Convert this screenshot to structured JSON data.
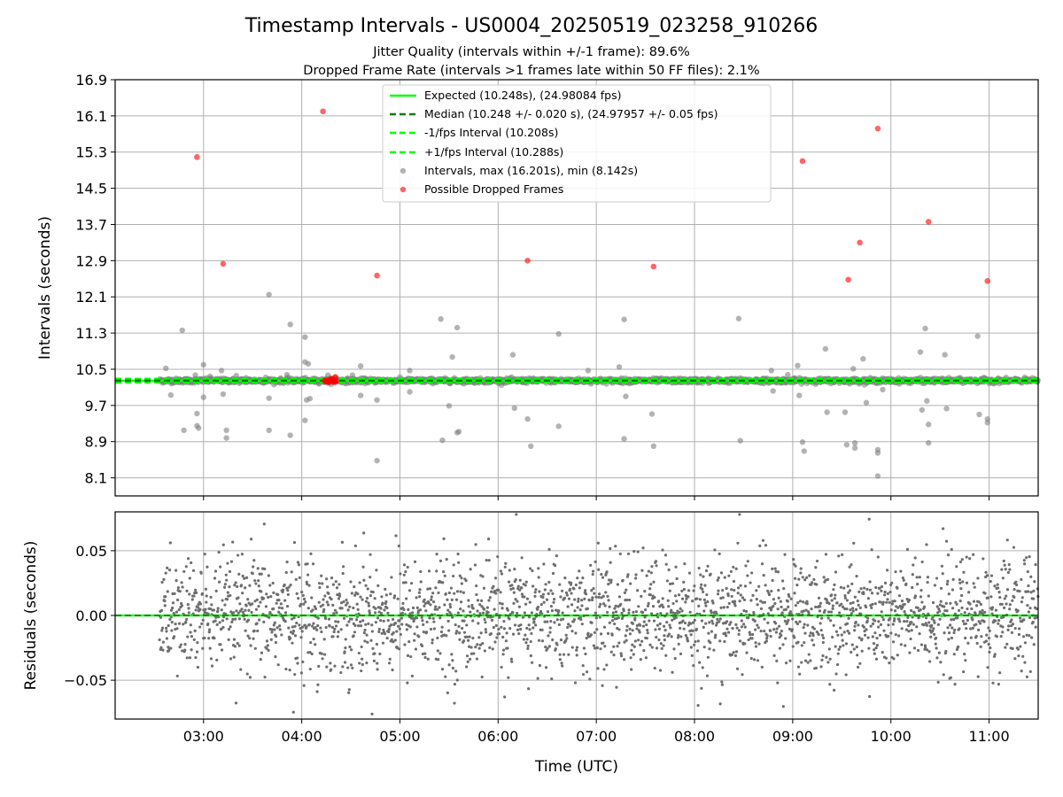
{
  "figure": {
    "title": "Timestamp Intervals - US0004_20250519_023258_910266",
    "subtitle_line1": "Jitter Quality (intervals within +/-1 frame): 89.6%",
    "subtitle_line2": "Dropped Frame Rate (intervals >1 frames late within 50 FF files): 2.1%"
  },
  "colors": {
    "expected": "#00ff00",
    "median": "#008000",
    "interval_band": "#00ff00",
    "intervals": "#808080",
    "dropped": "#ff0000",
    "grid": "#b0b0b0"
  },
  "chart_data": [
    {
      "type": "scatter",
      "ylabel": "Intervals (seconds)",
      "xlim": [
        "02:06",
        "11:30"
      ],
      "ylim": [
        7.7,
        16.9
      ],
      "yticks": [
        "16.9",
        "16.1",
        "15.3",
        "14.5",
        "13.7",
        "12.9",
        "12.1",
        "11.3",
        "10.5",
        "9.7",
        "8.9",
        "8.1"
      ],
      "grid": true,
      "legend_position": "upper-center",
      "legend": [
        "Expected (10.248s), (24.98084 fps)",
        "Median (10.248 +/- 0.020 s), (24.97957 +/- 0.05 fps)",
        "-1/fps Interval (10.208s)",
        "+1/fps Interval (10.288s)",
        "Intervals, max (16.201s), min (8.142s)",
        "Possible Dropped Frames"
      ],
      "expected": 10.248,
      "median": 10.248,
      "minus_interval": 10.208,
      "plus_interval": 10.288,
      "baseline_range": [
        "02:33",
        "11:30"
      ],
      "outliers": [
        [
          "02:37",
          10.52
        ],
        [
          "02:40",
          9.93
        ],
        [
          "02:47",
          11.36
        ],
        [
          "02:48",
          9.15
        ],
        [
          "02:55",
          10.37
        ],
        [
          "02:56",
          9.52
        ],
        [
          "02:56",
          9.25
        ],
        [
          "02:57",
          9.2
        ],
        [
          "03:00",
          10.6
        ],
        [
          "03:00",
          9.88
        ],
        [
          "03:04",
          10.34
        ],
        [
          "03:11",
          10.47
        ],
        [
          "03:12",
          9.95
        ],
        [
          "03:14",
          9.15
        ],
        [
          "03:14",
          8.98
        ],
        [
          "03:20",
          10.36
        ],
        [
          "03:26",
          10.31
        ],
        [
          "03:38",
          10.32
        ],
        [
          "03:40",
          12.15
        ],
        [
          "03:40",
          9.86
        ],
        [
          "03:40",
          9.15
        ],
        [
          "03:51",
          10.38
        ],
        [
          "03:53",
          11.49
        ],
        [
          "03:53",
          9.04
        ],
        [
          "04:02",
          11.21
        ],
        [
          "04:02",
          10.66
        ],
        [
          "04:02",
          9.37
        ],
        [
          "04:03",
          9.82
        ],
        [
          "04:04",
          10.62
        ],
        [
          "04:05",
          9.85
        ],
        [
          "04:16",
          10.37
        ],
        [
          "04:31",
          10.37
        ],
        [
          "04:36",
          10.57
        ],
        [
          "04:36",
          9.92
        ],
        [
          "04:46",
          9.82
        ],
        [
          "04:46",
          8.48
        ],
        [
          "05:06",
          10.47
        ],
        [
          "05:06",
          10.0
        ],
        [
          "05:25",
          11.61
        ],
        [
          "05:26",
          8.93
        ],
        [
          "05:30",
          9.69
        ],
        [
          "05:32",
          10.77
        ],
        [
          "05:35",
          11.42
        ],
        [
          "05:35",
          9.1
        ],
        [
          "05:36",
          9.12
        ],
        [
          "06:09",
          10.82
        ],
        [
          "06:10",
          9.64
        ],
        [
          "06:18",
          9.4
        ],
        [
          "06:20",
          8.8
        ],
        [
          "06:37",
          11.28
        ],
        [
          "06:37",
          9.24
        ],
        [
          "06:55",
          10.47
        ],
        [
          "07:14",
          10.55
        ],
        [
          "07:17",
          11.6
        ],
        [
          "07:17",
          8.96
        ],
        [
          "07:18",
          9.9
        ],
        [
          "07:34",
          9.51
        ],
        [
          "07:35",
          8.8
        ],
        [
          "08:27",
          11.62
        ],
        [
          "08:28",
          8.92
        ],
        [
          "08:47",
          10.47
        ],
        [
          "08:48",
          10.02
        ],
        [
          "08:57",
          10.38
        ],
        [
          "09:03",
          10.58
        ],
        [
          "09:04",
          9.92
        ],
        [
          "09:06",
          8.89
        ],
        [
          "09:07",
          8.69
        ],
        [
          "09:20",
          10.95
        ],
        [
          "09:21",
          9.55
        ],
        [
          "09:32",
          9.55
        ],
        [
          "09:33",
          8.83
        ],
        [
          "09:37",
          10.51
        ],
        [
          "09:38",
          8.87
        ],
        [
          "09:38",
          8.76
        ],
        [
          "09:43",
          10.73
        ],
        [
          "09:45",
          9.76
        ],
        [
          "09:52",
          8.72
        ],
        [
          "09:52",
          8.65
        ],
        [
          "09:52",
          8.14
        ],
        [
          "09:55",
          10.05
        ],
        [
          "10:18",
          10.88
        ],
        [
          "10:19",
          9.6
        ],
        [
          "10:21",
          11.4
        ],
        [
          "10:22",
          9.8
        ],
        [
          "10:23",
          9.28
        ],
        [
          "10:23",
          8.87
        ],
        [
          "10:33",
          10.82
        ],
        [
          "10:34",
          9.63
        ],
        [
          "10:53",
          11.23
        ],
        [
          "10:54",
          9.5
        ],
        [
          "10:59",
          9.4
        ],
        [
          "10:59",
          9.32
        ]
      ],
      "dropped_frames": [
        [
          "02:56",
          15.19
        ],
        [
          "03:12",
          12.83
        ],
        [
          "04:13",
          16.2
        ],
        [
          "04:46",
          12.57
        ],
        [
          "06:18",
          12.9
        ],
        [
          "07:35",
          12.77
        ],
        [
          "09:06",
          15.1
        ],
        [
          "09:34",
          12.48
        ],
        [
          "09:41",
          13.3
        ],
        [
          "09:52",
          15.82
        ],
        [
          "10:23",
          13.76
        ],
        [
          "10:59",
          12.45
        ]
      ],
      "dropped_cluster": [
        "04:14",
        "04:21",
        10.248
      ]
    },
    {
      "type": "scatter",
      "xlabel": "Time (UTC)",
      "ylabel": "Residuals (seconds)",
      "xlim": [
        "02:06",
        "11:30"
      ],
      "ylim": [
        -0.08,
        0.08
      ],
      "yticks": [
        "0.05",
        "0.00",
        "−0.05"
      ],
      "xticks": [
        "03:00",
        "04:00",
        "05:00",
        "06:00",
        "07:00",
        "08:00",
        "09:00",
        "10:00",
        "11:00"
      ],
      "grid": true,
      "zero_line": 0.0,
      "point_count": 2500,
      "residual_spread": 0.05
    }
  ]
}
